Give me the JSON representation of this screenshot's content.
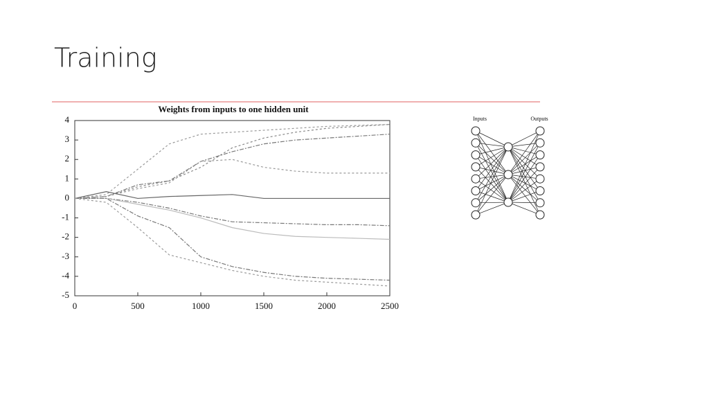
{
  "slide": {
    "title": "Training"
  },
  "chart_data": {
    "type": "line",
    "title": "Weights from inputs to one hidden unit",
    "x": [
      0,
      250,
      500,
      750,
      1000,
      1250,
      1500,
      1750,
      2000,
      2250,
      2500
    ],
    "xlim": [
      0,
      2500
    ],
    "xticks": [
      0,
      500,
      1000,
      1500,
      2000,
      2500
    ],
    "ylim": [
      -5,
      4
    ],
    "yticks": [
      -5,
      -4,
      -3,
      -2,
      -1,
      0,
      1,
      2,
      3,
      4
    ],
    "series": [
      {
        "color": "#999",
        "dash": "3,3",
        "values": [
          0,
          0.2,
          1.5,
          2.8,
          3.3,
          3.4,
          3.5,
          3.6,
          3.7,
          3.75,
          3.8
        ]
      },
      {
        "color": "#888",
        "dash": "3,3",
        "values": [
          0,
          0.1,
          0.6,
          0.9,
          1.6,
          2.6,
          3.1,
          3.4,
          3.6,
          3.7,
          3.8
        ]
      },
      {
        "color": "#777",
        "dash": "6,2,2,2",
        "values": [
          0,
          0.1,
          0.7,
          0.9,
          1.9,
          2.4,
          2.8,
          3.0,
          3.1,
          3.2,
          3.3
        ]
      },
      {
        "color": "#999",
        "dash": "3,3",
        "values": [
          0,
          0.1,
          0.5,
          0.8,
          1.9,
          2.0,
          1.6,
          1.4,
          1.3,
          1.3,
          1.3
        ]
      },
      {
        "color": "#666",
        "dash": "none",
        "values": [
          0,
          0.35,
          0,
          0.1,
          0.15,
          0.2,
          0,
          0,
          0,
          0,
          0
        ]
      },
      {
        "color": "#777",
        "dash": "6,2,2,2",
        "values": [
          0,
          0,
          -0.2,
          -0.5,
          -0.9,
          -1.2,
          -1.25,
          -1.3,
          -1.35,
          -1.35,
          -1.4
        ]
      },
      {
        "color": "#bbb",
        "dash": "none",
        "values": [
          0,
          0,
          -0.3,
          -0.6,
          -1.0,
          -1.5,
          -1.8,
          -1.95,
          -2.0,
          -2.05,
          -2.1
        ]
      },
      {
        "color": "#777",
        "dash": "6,2,2,2",
        "values": [
          0,
          0,
          -0.9,
          -1.5,
          -3.0,
          -3.5,
          -3.8,
          -4.0,
          -4.1,
          -4.15,
          -4.2
        ]
      },
      {
        "color": "#999",
        "dash": "3,3",
        "values": [
          0,
          -0.2,
          -1.5,
          -2.9,
          -3.3,
          -3.7,
          -4.0,
          -4.2,
          -4.3,
          -4.4,
          -4.5
        ]
      }
    ]
  },
  "diagram": {
    "inputs_label": "Inputs",
    "outputs_label": "Outputs"
  }
}
